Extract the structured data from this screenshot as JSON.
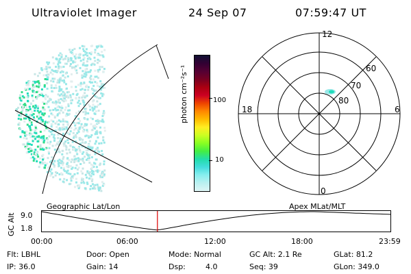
{
  "header": {
    "title": "Ultraviolet Imager",
    "date": "24 Sep 07",
    "time": "07:59:47 UT"
  },
  "colorbar": {
    "unit_label": "photon cm⁻²s⁻¹",
    "ticks": [
      "100",
      "10"
    ],
    "colors": [
      "#111133",
      "#330033",
      "#550033",
      "#770022",
      "#aa0011",
      "#cc0022",
      "#ee4400",
      "#ff8800",
      "#ffbb00",
      "#ffee22",
      "#ccff22",
      "#88ff22",
      "#44ee44",
      "#22ddaa",
      "#44dddd",
      "#88eeee",
      "#bbf0f0",
      "#ddf5f5"
    ]
  },
  "polar_plot": {
    "mlt_labels": [
      "12",
      "18",
      "6",
      "0"
    ],
    "lat_labels": [
      "60",
      "70",
      "80"
    ]
  },
  "timeline": {
    "y_label": "GC Alt",
    "y_ticks": [
      "9.0",
      "1.8"
    ],
    "x_ticks": [
      "00:00",
      "06:00",
      "12:00",
      "18:00",
      "23:59"
    ],
    "left_caption": "Geographic Lat/Lon",
    "right_caption": "Apex MLat/MLT",
    "marker_fraction": 0.333
  },
  "info": {
    "flt": "Flt: LBHL",
    "ip": "IP: 36.0",
    "door": "Door: Open",
    "gain": "Gain: 14",
    "mode": "Mode: Normal",
    "dsp_label": "Dsp:",
    "dsp_value": "4.0",
    "gc_alt": "GC Alt: 2.1 Re",
    "seq": "Seq: 39",
    "glat": "GLat: 81.2",
    "glon": "GLon: 349.0"
  },
  "accent": {
    "marker": "#dd0000",
    "aurora_primary": "#22ddbb",
    "aurora_secondary": "#99e8e8"
  }
}
